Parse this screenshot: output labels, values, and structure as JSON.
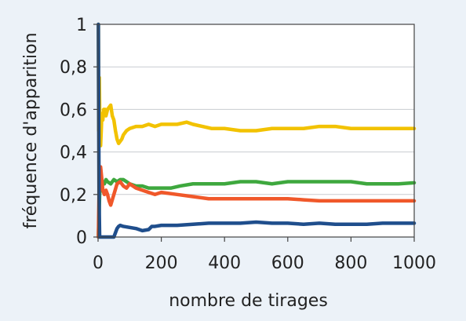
{
  "chart_data": {
    "type": "line",
    "title": "",
    "xlabel": "nombre de tirages",
    "ylabel": "fréquence d'apparition",
    "xlim": [
      0,
      1000
    ],
    "ylim": [
      0,
      1
    ],
    "grid": true,
    "x_ticks": [
      "0",
      "200",
      "400",
      "600",
      "800",
      "1000"
    ],
    "y_ticks": [
      "0",
      "0,2",
      "0,4",
      "0,6",
      "0,8",
      "1"
    ],
    "x_tick_values": [
      0,
      200,
      400,
      600,
      800,
      1000
    ],
    "y_tick_values": [
      0,
      0.2,
      0.4,
      0.6,
      0.8,
      1
    ],
    "series": [
      {
        "color": "#f2c200",
        "x": [
          1,
          2,
          3,
          4,
          5,
          6,
          8,
          10,
          12,
          15,
          18,
          20,
          22,
          25,
          30,
          35,
          40,
          45,
          50,
          55,
          60,
          65,
          70,
          75,
          80,
          90,
          100,
          120,
          140,
          160,
          180,
          200,
          220,
          250,
          280,
          300,
          330,
          360,
          400,
          450,
          480,
          500,
          550,
          600,
          650,
          700,
          750,
          800,
          850,
          900,
          950,
          1000
        ],
        "y": [
          1,
          0.5,
          0.67,
          0.75,
          0.6,
          0.5,
          0.43,
          0.5,
          0.58,
          0.55,
          0.6,
          0.58,
          0.6,
          0.57,
          0.6,
          0.61,
          0.62,
          0.57,
          0.55,
          0.5,
          0.46,
          0.44,
          0.45,
          0.46,
          0.48,
          0.5,
          0.51,
          0.52,
          0.52,
          0.53,
          0.52,
          0.53,
          0.53,
          0.53,
          0.54,
          0.53,
          0.52,
          0.51,
          0.51,
          0.5,
          0.5,
          0.5,
          0.51,
          0.51,
          0.51,
          0.52,
          0.52,
          0.51,
          0.51,
          0.51,
          0.51,
          0.51
        ]
      },
      {
        "color": "#3ea83e",
        "x": [
          1,
          3,
          5,
          8,
          10,
          15,
          20,
          25,
          30,
          40,
          50,
          60,
          70,
          80,
          90,
          100,
          120,
          140,
          160,
          180,
          200,
          230,
          260,
          300,
          350,
          400,
          450,
          500,
          550,
          600,
          650,
          700,
          750,
          800,
          850,
          900,
          950,
          1000
        ],
        "y": [
          0,
          0.1,
          0.2,
          0.25,
          0.27,
          0.26,
          0.25,
          0.27,
          0.26,
          0.25,
          0.27,
          0.26,
          0.27,
          0.27,
          0.26,
          0.25,
          0.24,
          0.24,
          0.23,
          0.23,
          0.23,
          0.23,
          0.24,
          0.25,
          0.25,
          0.25,
          0.26,
          0.26,
          0.25,
          0.26,
          0.26,
          0.26,
          0.26,
          0.26,
          0.25,
          0.25,
          0.25,
          0.255
        ]
      },
      {
        "color": "#f0582a",
        "x": [
          1,
          3,
          5,
          8,
          10,
          12,
          15,
          20,
          25,
          30,
          35,
          40,
          50,
          60,
          70,
          80,
          90,
          100,
          120,
          140,
          160,
          180,
          200,
          250,
          300,
          350,
          400,
          450,
          500,
          550,
          600,
          650,
          700,
          750,
          800,
          850,
          900,
          950,
          1000
        ],
        "y": [
          0,
          0.2,
          0.28,
          0.33,
          0.3,
          0.27,
          0.22,
          0.2,
          0.22,
          0.2,
          0.17,
          0.15,
          0.2,
          0.25,
          0.26,
          0.24,
          0.23,
          0.25,
          0.23,
          0.22,
          0.21,
          0.2,
          0.21,
          0.2,
          0.19,
          0.18,
          0.18,
          0.18,
          0.18,
          0.18,
          0.18,
          0.175,
          0.17,
          0.17,
          0.17,
          0.17,
          0.17,
          0.17,
          0.17
        ]
      },
      {
        "color": "#1f4e8c",
        "x": [
          1,
          2,
          3,
          5,
          10,
          20,
          30,
          40,
          50,
          55,
          60,
          65,
          70,
          80,
          100,
          120,
          140,
          160,
          170,
          180,
          200,
          250,
          300,
          350,
          400,
          450,
          500,
          550,
          600,
          650,
          700,
          750,
          800,
          850,
          900,
          950,
          1000
        ],
        "y": [
          1,
          0.6,
          0.2,
          0,
          0,
          0,
          0,
          0,
          0,
          0.02,
          0.04,
          0.05,
          0.055,
          0.05,
          0.045,
          0.04,
          0.03,
          0.035,
          0.05,
          0.05,
          0.055,
          0.055,
          0.06,
          0.065,
          0.065,
          0.065,
          0.07,
          0.065,
          0.065,
          0.06,
          0.065,
          0.06,
          0.06,
          0.06,
          0.065,
          0.065,
          0.065
        ]
      }
    ]
  }
}
